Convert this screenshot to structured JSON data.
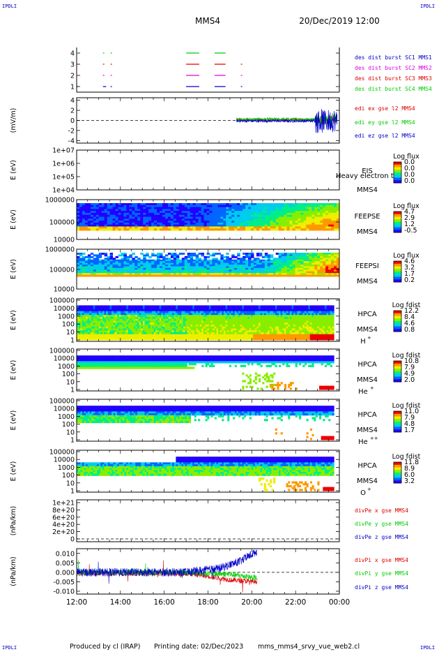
{
  "corner_labels": [
    "IPDLI",
    "IPDLI",
    "IPDLI",
    "IPDLI"
  ],
  "header": {
    "spacecraft": "MMS4",
    "datetime": "20/Dec/2019 12:00"
  },
  "footer": {
    "produced_by": "Produced by cl (IRAP)",
    "printing_date": "Printing date: 02/Dec/2023",
    "script": "mms_mms4_srvy_vue_web2.cl"
  },
  "colors": {
    "blue": "#0000cc",
    "green": "#00cc00",
    "magenta": "#dd00dd",
    "red": "#dd0000",
    "palette": [
      "#ffffff",
      "#2200ff",
      "#0066ff",
      "#00ccee",
      "#00ee88",
      "#88ee00",
      "#eeee00",
      "#ff9900",
      "#ee0000"
    ]
  },
  "chart_data": [
    {
      "id": "burst",
      "type": "line",
      "yticks": [
        "4",
        "3",
        "2",
        "1"
      ],
      "legend": [
        {
          "text": "des dist burst SC1 MMS1",
          "color": "#0000cc"
        },
        {
          "text": "des dist burst SC2 MMS2",
          "color": "#dd00dd"
        },
        {
          "text": "des dist burst SC3 MMS3",
          "color": "#dd0000"
        },
        {
          "text": "des dist burst SC4 MMS4",
          "color": "#00cc00"
        }
      ],
      "series": [
        {
          "level": 4,
          "color": "#00cc00",
          "segments": [
            [
              12.0,
              12.05
            ],
            [
              13.2,
              13.25
            ],
            [
              13.55,
              13.6
            ],
            [
              17.0,
              17.6
            ],
            [
              18.3,
              18.8
            ]
          ]
        },
        {
          "level": 3,
          "color": "#dd0000",
          "segments": [
            [
              12.0,
              12.05
            ],
            [
              13.2,
              13.25
            ],
            [
              13.55,
              13.6
            ],
            [
              17.0,
              17.6
            ],
            [
              18.3,
              18.8
            ],
            [
              19.5,
              19.55
            ]
          ]
        },
        {
          "level": 2,
          "color": "#dd00dd",
          "segments": [
            [
              12.0,
              12.05
            ],
            [
              13.2,
              13.25
            ],
            [
              13.55,
              13.6
            ],
            [
              17.0,
              17.6
            ],
            [
              18.3,
              18.8
            ],
            [
              19.5,
              19.55
            ]
          ]
        },
        {
          "level": 1,
          "color": "#0000cc",
          "segments": [
            [
              12.0,
              12.05
            ],
            [
              13.2,
              13.35
            ],
            [
              13.55,
              13.6
            ],
            [
              17.0,
              17.6
            ],
            [
              18.3,
              18.8
            ],
            [
              19.5,
              19.55
            ]
          ]
        }
      ]
    },
    {
      "id": "edi",
      "type": "line",
      "ylabel": "(mV/m)",
      "yticks": [
        "4",
        "2",
        "0",
        "-2",
        "-4"
      ],
      "ylim": [
        -4.5,
        4.5
      ],
      "legend": [
        {
          "text": "edi ex gse l2 MMS4",
          "color": "#dd0000"
        },
        {
          "text": "edi ey gse l2 MMS4",
          "color": "#00cc00"
        },
        {
          "text": "edi ez gse l2 MMS4",
          "color": "#0000cc"
        }
      ],
      "data_range_hours": [
        19.3,
        24.0
      ]
    },
    {
      "id": "eis",
      "type": "heatmap",
      "ylabel": "E (eV)",
      "yticks": [
        "1e+07",
        "1e+06",
        "1e+05",
        "1e+04"
      ],
      "instrument": [
        "EIS",
        "MMS4"
      ],
      "overlay": "Heavy electron to",
      "cb_title": "Log flux",
      "cb_ticks": [
        "0.0",
        "0.0",
        "0.0",
        "0.0"
      ]
    },
    {
      "id": "feepse",
      "type": "heatmap",
      "ylabel": "E (eV)",
      "yticks": [
        "1000000",
        "100000",
        "10000"
      ],
      "instrument": [
        "FEEPSE",
        "MMS4"
      ],
      "cb_title": "Log flux",
      "cb_ticks": [
        "4.7",
        "2.9",
        "1.2",
        "-0.5"
      ]
    },
    {
      "id": "feepsi",
      "type": "heatmap",
      "ylabel": "E (eV)",
      "yticks": [
        "1000000",
        "100000",
        "10000"
      ],
      "instrument": [
        "FEEPSI",
        "MMS4"
      ],
      "cb_title": "Log flux",
      "cb_ticks": [
        "4.6",
        "3.2",
        "1.7",
        "0.2"
      ]
    },
    {
      "id": "hpca_h",
      "type": "heatmap",
      "ylabel": "E (eV)",
      "yticks": [
        "100000",
        "10000",
        "1000",
        "100",
        "10",
        "1"
      ],
      "instrument": [
        "HPCA",
        "MMS4",
        "H",
        "+"
      ],
      "cb_title": "Log fdist",
      "cb_ticks": [
        "12.2",
        "8.4",
        "4.6",
        "0.8"
      ]
    },
    {
      "id": "hpca_he",
      "type": "heatmap",
      "ylabel": "E (eV)",
      "yticks": [
        "100000",
        "10000",
        "1000",
        "100",
        "10",
        "1"
      ],
      "instrument": [
        "HPCA",
        "MMS4",
        "He",
        "+"
      ],
      "cb_title": "Log fdist",
      "cb_ticks": [
        "10.8",
        "7.9",
        "4.9",
        "2.0"
      ]
    },
    {
      "id": "hpca_hepp",
      "type": "heatmap",
      "ylabel": "E (eV)",
      "yticks": [
        "100000",
        "10000",
        "1000",
        "100",
        "10",
        "1"
      ],
      "instrument": [
        "HPCA",
        "MMS4",
        "He",
        "++"
      ],
      "cb_title": "Log fdist",
      "cb_ticks": [
        "11.0",
        "7.9",
        "4.8",
        "1.7"
      ]
    },
    {
      "id": "hpca_o",
      "type": "heatmap",
      "ylabel": "E (eV)",
      "yticks": [
        "100000",
        "10000",
        "1000",
        "100",
        "10",
        "1"
      ],
      "instrument": [
        "HPCA",
        "MMS4",
        "O",
        "+"
      ],
      "cb_title": "Log fdist",
      "cb_ticks": [
        "11.8",
        "8.9",
        "6.0",
        "3.2"
      ]
    },
    {
      "id": "divpe",
      "type": "line",
      "ylabel": "(nPa/km)",
      "yticks": [
        "1e+21",
        "8e+20",
        "6e+20",
        "4e+20",
        "2e+20",
        "0"
      ],
      "legend": [
        {
          "text": "divPe x gse MMS4",
          "color": "#dd0000"
        },
        {
          "text": "divPe y gse MMS4",
          "color": "#00cc00"
        },
        {
          "text": "divPe z gse MMS4",
          "color": "#0000cc"
        }
      ]
    },
    {
      "id": "divpi",
      "type": "line",
      "ylabel": "(nPa/km)",
      "yticks": [
        "0.010",
        "0.005",
        "0.000",
        "-0.005",
        "-0.010"
      ],
      "ylim": [
        -0.0115,
        0.0125
      ],
      "legend": [
        {
          "text": "divPi x gse MMS4",
          "color": "#dd0000"
        },
        {
          "text": "divPi y gse MMS4",
          "color": "#00cc00"
        },
        {
          "text": "divPi z gse MMS4",
          "color": "#0000cc"
        }
      ],
      "data_range_hours": [
        12.0,
        20.25
      ],
      "approx_trend": {
        "z": [
          [
            12.0,
            0.0
          ],
          [
            17.0,
            0.0
          ],
          [
            18.5,
            0.002
          ],
          [
            19.5,
            0.006
          ],
          [
            20.2,
            0.011
          ]
        ],
        "y": [
          [
            12.0,
            0.0
          ],
          [
            17.0,
            0.0
          ],
          [
            19.0,
            -0.001
          ],
          [
            20.2,
            -0.003
          ]
        ],
        "x": [
          [
            12.0,
            -0.0005
          ],
          [
            17.0,
            -0.0005
          ],
          [
            18.0,
            -0.002
          ],
          [
            19.0,
            -0.004
          ],
          [
            20.2,
            -0.005
          ]
        ]
      }
    }
  ],
  "xaxis": {
    "ticks": [
      "12:00",
      "14:00",
      "16:00",
      "18:00",
      "20:00",
      "22:00",
      "00:00"
    ],
    "range_hours": [
      12,
      24
    ]
  }
}
